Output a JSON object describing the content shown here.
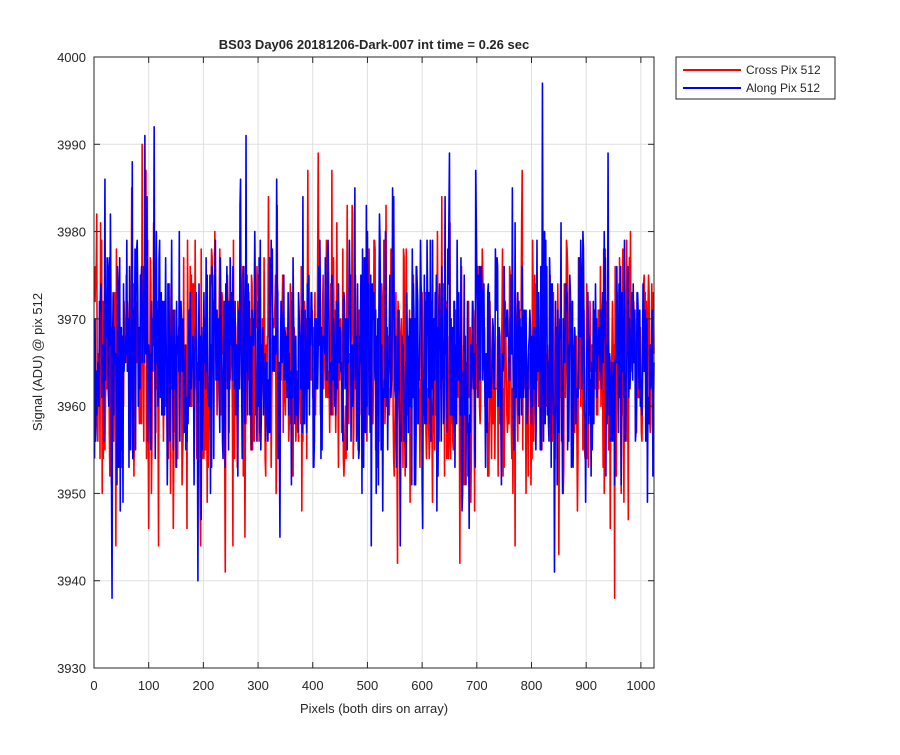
{
  "figure": {
    "background": "#ffffff"
  },
  "chart_data": {
    "type": "line",
    "title": "BS03 Day06 20181206-Dark-007 int time = 0.26 sec",
    "xlabel": "Pixels (both dirs on array)",
    "ylabel": "Signal (ADU) @ pix 512",
    "xlim": [
      0,
      1024
    ],
    "ylim": [
      3930,
      4000
    ],
    "xticks": [
      0,
      100,
      200,
      300,
      400,
      500,
      600,
      700,
      800,
      900,
      1000
    ],
    "xtick_labels": [
      "0",
      "100",
      "200",
      "300",
      "400",
      "500",
      "600",
      "700",
      "800",
      "900",
      "1000"
    ],
    "yticks": [
      3930,
      3940,
      3950,
      3960,
      3970,
      3980,
      3990,
      4000
    ],
    "ytick_labels": [
      "3930",
      "3940",
      "3950",
      "3960",
      "3970",
      "3980",
      "3990",
      "4000"
    ],
    "grid": true,
    "legend": {
      "placement": "outside-top-right"
    },
    "x": {
      "start": 1,
      "step": 1,
      "count": 1024
    },
    "series": [
      {
        "name": "Cross Pix 512",
        "color": "#ff0000",
        "summary": {
          "mean": 3965,
          "min": 3938,
          "max": 3990
        },
        "noted_points": [
          [
            6,
            3958
          ],
          [
            12,
            3981
          ],
          [
            40,
            3944
          ],
          [
            88,
            3990
          ],
          [
            105,
            3950
          ],
          [
            170,
            3946
          ],
          [
            195,
            3944
          ],
          [
            240,
            3941
          ],
          [
            410,
            3989
          ],
          [
            555,
            3942
          ],
          [
            770,
            3944
          ],
          [
            820,
            3986
          ],
          [
            850,
            3943
          ],
          [
            952,
            3938
          ],
          [
            1020,
            3974
          ]
        ],
        "seed": 7
      },
      {
        "name": "Along Pix 512",
        "color": "#0000ff",
        "summary": {
          "mean": 3966,
          "min": 3938,
          "max": 3997
        },
        "noted_points": [
          [
            20,
            3986
          ],
          [
            33,
            3938
          ],
          [
            70,
            3988
          ],
          [
            93,
            3991
          ],
          [
            110,
            3992
          ],
          [
            190,
            3940
          ],
          [
            340,
            3945
          ],
          [
            560,
            3944
          ],
          [
            650,
            3989
          ],
          [
            820,
            3997
          ],
          [
            940,
            3989
          ],
          [
            1022,
            3952
          ]
        ],
        "seed": 13
      }
    ]
  }
}
